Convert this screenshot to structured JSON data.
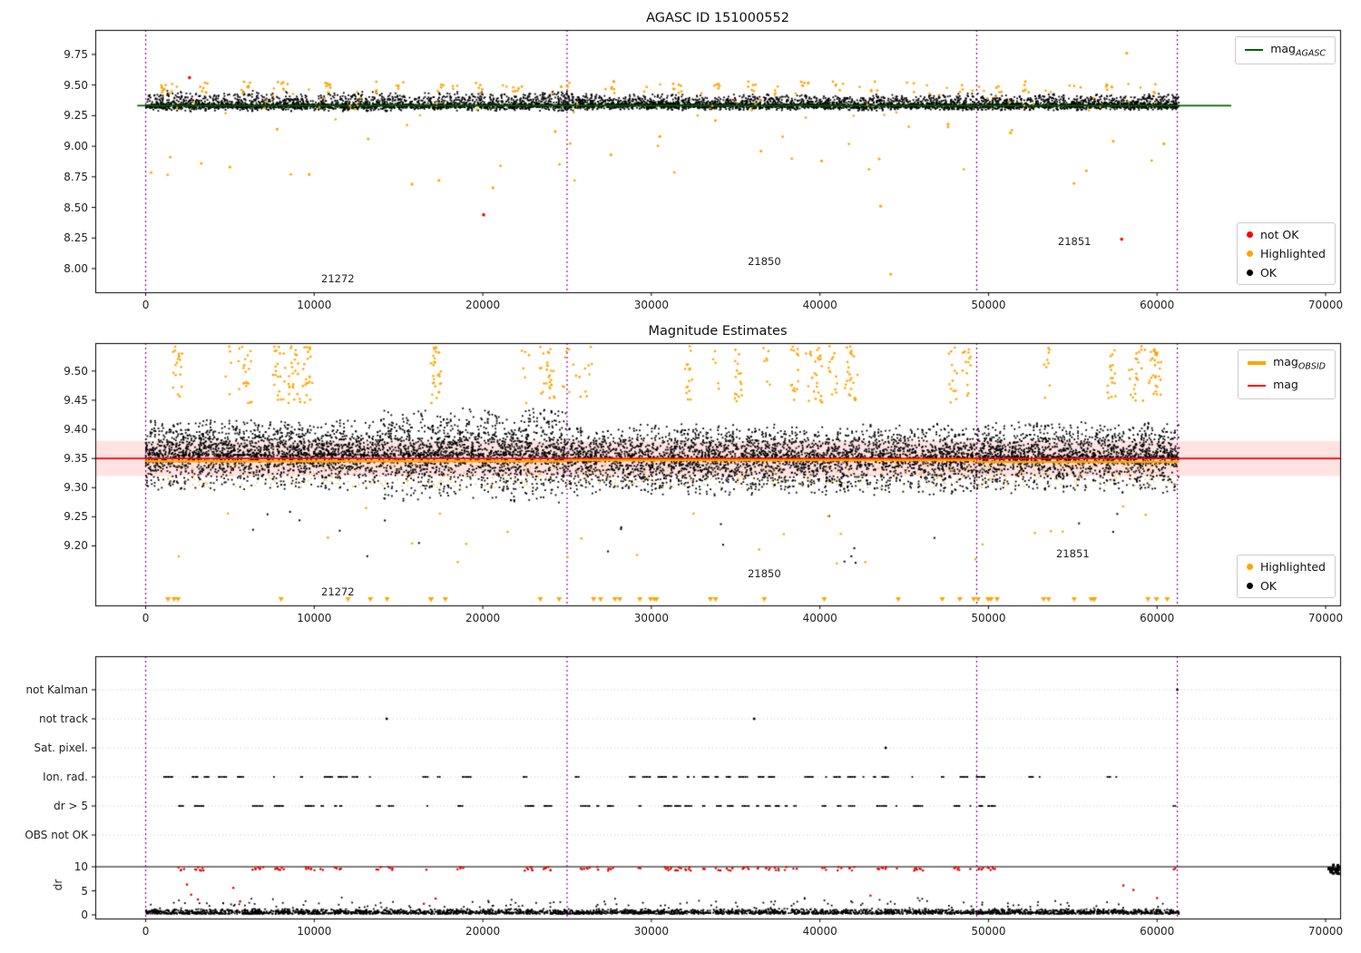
{
  "figure": {
    "bg": "#ffffff"
  },
  "obsid_boundaries": [
    0,
    25000,
    49300,
    61200
  ],
  "boundary_color": "#990099",
  "chart_data": [
    {
      "type": "scatter",
      "title": "AGASC ID 151000552",
      "xlim": [
        -2990,
        70860
      ],
      "ylim": [
        7.807,
        9.95
      ],
      "xticks": [
        0,
        10000,
        20000,
        30000,
        40000,
        50000,
        60000,
        70000
      ],
      "yticks": [
        8.0,
        8.25,
        8.5,
        8.75,
        9.0,
        9.25,
        9.5,
        9.75
      ],
      "legend_line": {
        "prefix": "mag",
        "sub": "AGASC",
        "color": "#006400"
      },
      "legend_items": [
        {
          "label": "not OK",
          "color": "#ff0000"
        },
        {
          "label": "Highlighted",
          "color": "#ffa500"
        },
        {
          "label": "OK",
          "color": "#000000"
        }
      ],
      "mag_agasc": {
        "y": 9.332,
        "x0": -500,
        "x1": 64400
      },
      "annotations": [
        {
          "text": "21272",
          "x": 11400,
          "y": 7.92
        },
        {
          "text": "21850",
          "x": 36700,
          "y": 8.06
        },
        {
          "text": "21851",
          "x": 55100,
          "y": 8.22
        }
      ],
      "not_ok_points": [
        [
          2600,
          9.56
        ],
        [
          20050,
          8.44
        ],
        [
          57900,
          8.24
        ]
      ],
      "highlighted_outliers": [
        [
          44200,
          7.955
        ],
        [
          58200,
          9.76
        ],
        [
          43600,
          8.51
        ],
        [
          20600,
          8.66
        ],
        [
          9700,
          8.77
        ],
        [
          5000,
          8.83
        ],
        [
          13200,
          9.06
        ],
        [
          7800,
          9.14
        ],
        [
          30500,
          9.08
        ],
        [
          17400,
          8.72
        ],
        [
          55800,
          8.8
        ],
        [
          57400,
          9.04
        ],
        [
          36500,
          8.96
        ],
        [
          24300,
          9.12
        ],
        [
          3300,
          8.86
        ],
        [
          47600,
          9.18
        ],
        [
          33800,
          9.21
        ],
        [
          27600,
          8.93
        ],
        [
          51300,
          9.11
        ],
        [
          60400,
          9.02
        ],
        [
          40100,
          8.88
        ],
        [
          15800,
          8.69
        ]
      ],
      "ok_scatter": {
        "n": 5200,
        "x_range": [
          0,
          61300
        ],
        "y_base": 9.28,
        "y_top": 9.5
      },
      "highlighted_scatter": {
        "n": 210,
        "y_range": [
          9.2,
          9.53
        ]
      }
    },
    {
      "type": "scatter",
      "title": "Magnitude Estimates",
      "xlim": [
        -2990,
        70860
      ],
      "ylim": [
        9.098,
        9.548
      ],
      "xticks": [
        0,
        10000,
        20000,
        30000,
        40000,
        50000,
        60000,
        70000
      ],
      "yticks": [
        9.2,
        9.25,
        9.3,
        9.35,
        9.4,
        9.45,
        9.5
      ],
      "mag_line": {
        "y": 9.35,
        "color": "#ff0000"
      },
      "mag_band": {
        "y0": 9.32,
        "y1": 9.38
      },
      "mag_obsid_segments": [
        {
          "obsid": "21272",
          "x0": 0,
          "x1": 25000,
          "y": 9.345
        },
        {
          "obsid": "21850",
          "x0": 25000,
          "x1": 49300,
          "y": 9.347
        },
        {
          "obsid": "21851",
          "x0": 49300,
          "x1": 61200,
          "y": 9.344
        }
      ],
      "legend_lines": [
        {
          "prefix": "mag",
          "sub": "OBSID",
          "color": "#ffa500"
        },
        {
          "prefix": "mag",
          "sub": "",
          "color": "#ff0000"
        }
      ],
      "legend_items": [
        {
          "label": "Highlighted",
          "color": "#ffa500"
        },
        {
          "label": "OK",
          "color": "#000000"
        }
      ],
      "annotations": [
        {
          "text": "21272",
          "x": 11400,
          "y": 9.121
        },
        {
          "text": "21850",
          "x": 36700,
          "y": 9.152
        },
        {
          "text": "21851",
          "x": 55000,
          "y": 9.187
        }
      ],
      "ok_scatter": {
        "n": 9000,
        "x_range": [
          0,
          61300
        ],
        "y_center": 9.352,
        "y_min": 9.27,
        "y_max": 9.46
      },
      "highlighted_clusters": {
        "n_clusters": 40,
        "y_range": [
          9.44,
          9.545
        ]
      },
      "highlighted_low": {
        "n": 26,
        "y_range": [
          9.17,
          9.27
        ]
      },
      "clipped_low_y": 9.108,
      "clipped_low_n": 42
    },
    {
      "type": "flags",
      "categories": [
        "not Kalman",
        "not track",
        "Sat. pixel.",
        "Ion. rad.",
        "dr > 5",
        "OBS not OK"
      ],
      "ylabel": "dr",
      "dr_ticks": [
        10,
        5,
        0
      ],
      "dr_limit_line": 10,
      "xticks": [
        0,
        10000,
        20000,
        30000,
        40000,
        50000,
        60000,
        70000
      ],
      "sparse_points": {
        "not Kalman": [
          61200
        ],
        "not track": [
          14300,
          36100
        ],
        "Sat. pixel.": [
          43900
        ],
        "OBS not OK": []
      },
      "flag_rows_with_clusters": [
        "Ion. rad.",
        "dr > 5"
      ],
      "dr_scatter": {
        "n": 3200,
        "y_typical": [
          0,
          2
        ],
        "y_max": 7.5
      },
      "dr_red_extra": [
        [
          2450,
          6.3
        ],
        [
          2700,
          4.2
        ],
        [
          3100,
          3.2
        ],
        [
          5200,
          5.6
        ],
        [
          5600,
          2.8
        ],
        [
          16500,
          2.3
        ],
        [
          17200,
          3.4
        ],
        [
          43000,
          4.0
        ],
        [
          58000,
          6.1
        ],
        [
          58600,
          5.2
        ],
        [
          60000,
          3.5
        ]
      ]
    }
  ]
}
